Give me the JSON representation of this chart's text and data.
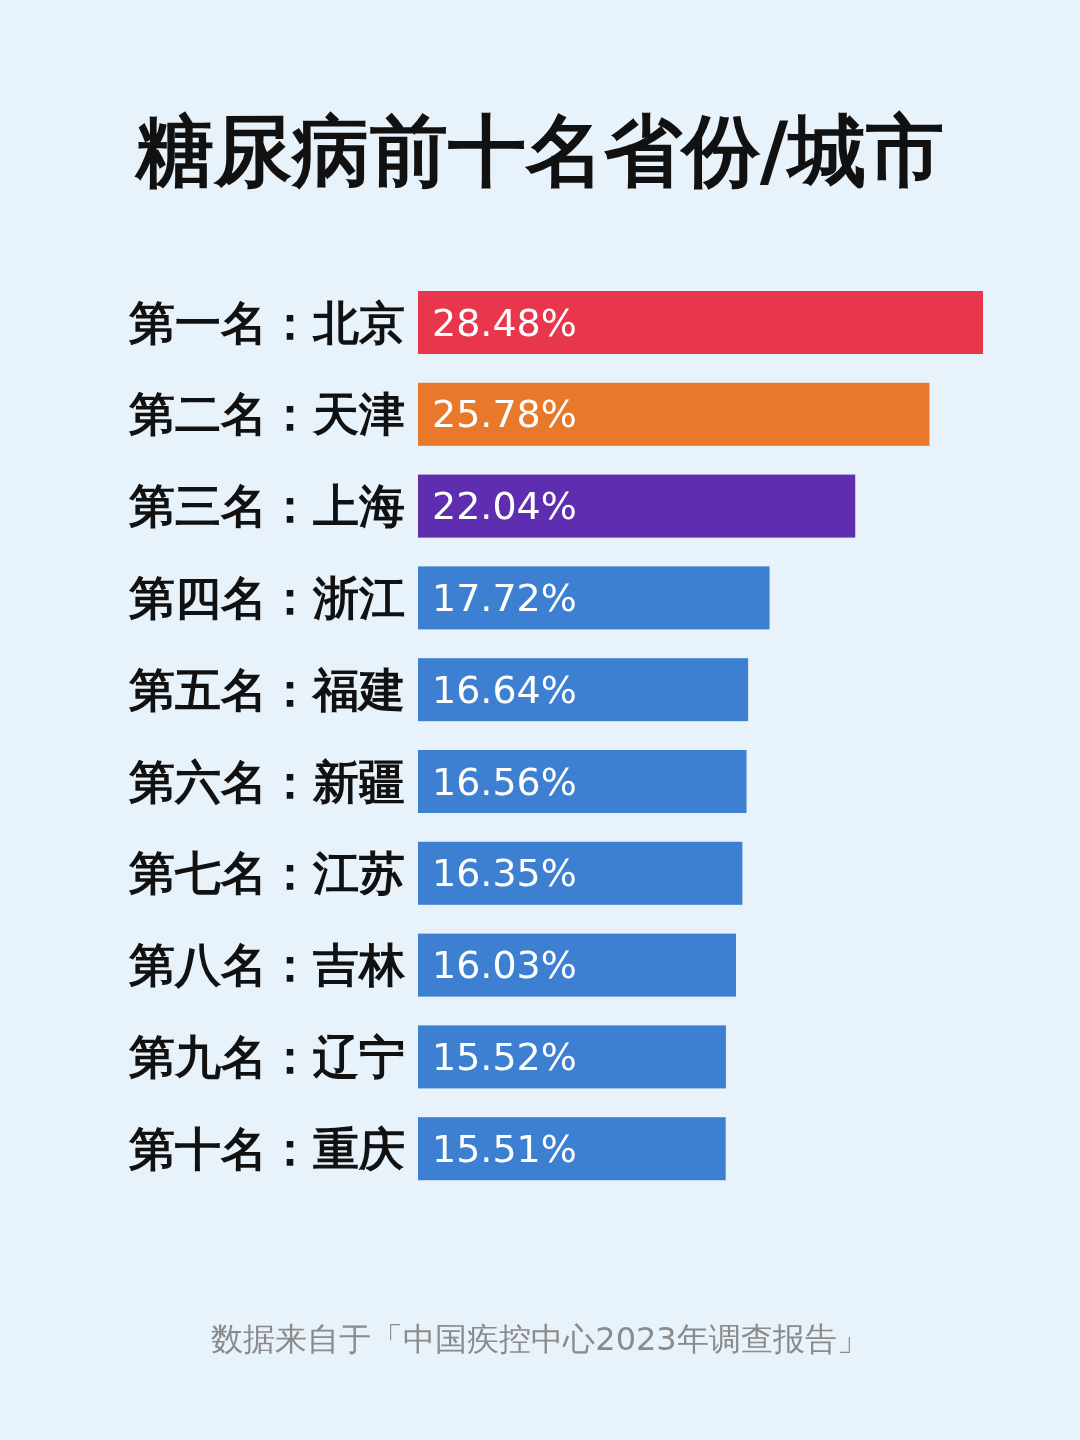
{
  "chart_data": {
    "type": "bar",
    "orientation": "horizontal",
    "title": "糖尿病前十名省份/城市",
    "categories": [
      "第一名：北京",
      "第二名：天津",
      "第三名：上海",
      "第四名：浙江",
      "第五名：福建",
      "第六名：新疆",
      "第七名：江苏",
      "第八名：吉林",
      "第九名：辽宁",
      "第十名：重庆"
    ],
    "values": [
      28.48,
      25.78,
      22.04,
      17.72,
      16.64,
      16.56,
      16.35,
      16.03,
      15.52,
      15.51
    ],
    "value_labels": [
      "28.48%",
      "25.78%",
      "22.04%",
      "17.72%",
      "16.64%",
      "16.56%",
      "16.35%",
      "16.03%",
      "15.52%",
      "15.51%"
    ],
    "colors": [
      "#e8364c",
      "#e8792a",
      "#5e2db0",
      "#3d7fd0",
      "#3d7fd0",
      "#3d7fd0",
      "#3d7fd0",
      "#3d7fd0",
      "#3d7fd0",
      "#3d7fd0"
    ],
    "annotations": [
      "数据来自于「中国疾控中心2023年调查报告」"
    ]
  }
}
